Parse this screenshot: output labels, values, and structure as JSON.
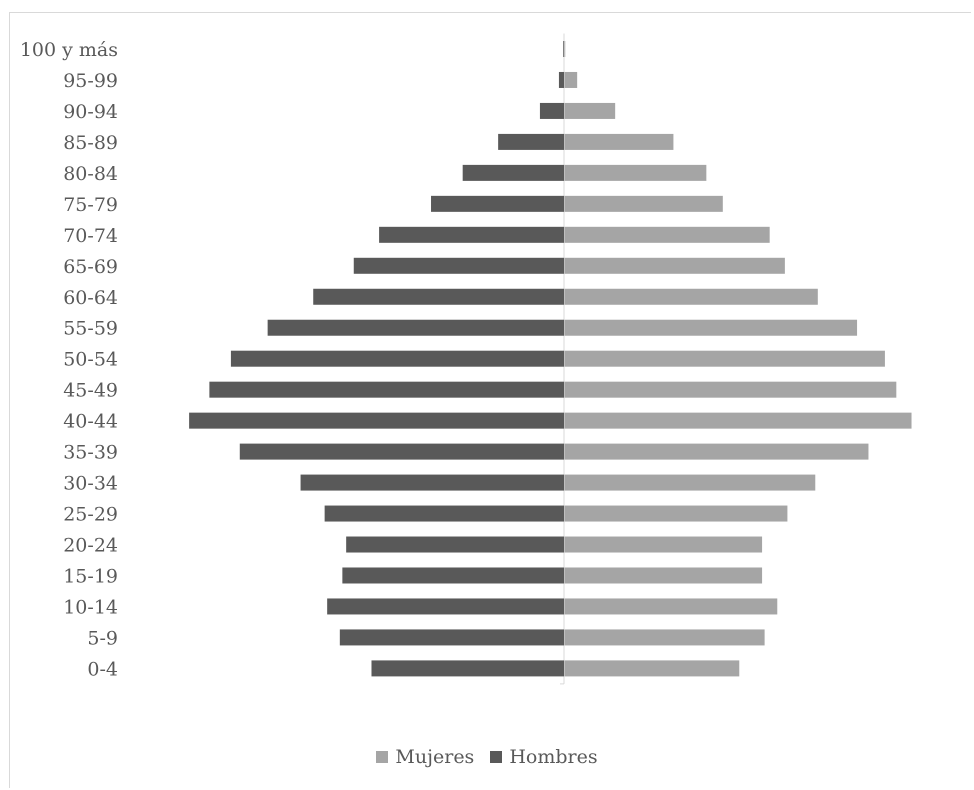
{
  "chart_data": {
    "type": "bar",
    "orientation": "horizontal",
    "layout": "population-pyramid",
    "categories": [
      "100 y más",
      "95-99",
      "90-94",
      "85-89",
      "80-84",
      "75-79",
      "70-74",
      "65-69",
      "60-64",
      "55-59",
      "50-54",
      "45-49",
      "40-44",
      "35-39",
      "30-34",
      "25-29",
      "20-24",
      "15-19",
      "10-14",
      "5-9",
      "0-4"
    ],
    "series": [
      {
        "name": "Mujeres",
        "color": "#a5a5a5",
        "side": "right",
        "values": [
          0.3,
          5,
          20,
          43,
          56,
          62.5,
          81,
          87,
          100,
          115.5,
          126.5,
          131,
          137,
          120,
          99,
          88,
          78,
          78,
          84,
          79,
          69
        ]
      },
      {
        "name": "Hombres",
        "color": "#595959",
        "side": "left",
        "values": [
          0.3,
          2,
          9.5,
          26,
          40,
          52.5,
          73,
          83,
          99,
          117,
          131.5,
          140,
          148,
          128,
          104,
          94.5,
          86,
          87.5,
          93.5,
          88.5,
          76
        ]
      }
    ],
    "x_axis": {
      "visible": false,
      "range": [
        -150,
        140
      ]
    },
    "grid": false,
    "legend": {
      "position": "bottom",
      "order": [
        "Mujeres",
        "Hombres"
      ]
    }
  }
}
